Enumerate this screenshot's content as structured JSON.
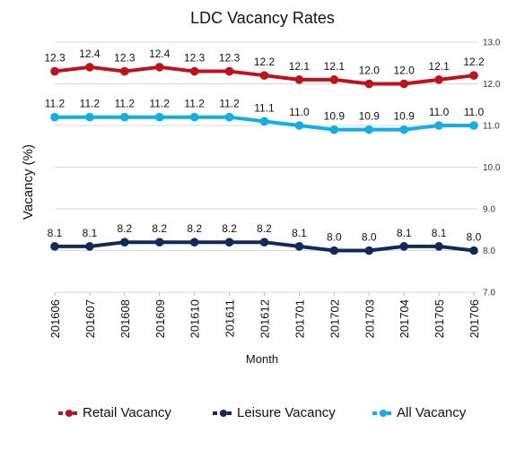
{
  "chart_data": {
    "type": "line",
    "title": "LDC Vacancy Rates",
    "xlabel": "Month",
    "ylabel": "Vacancy (%)",
    "ylim": [
      7.0,
      13.0
    ],
    "y_ticks": [
      "7.0",
      "8.0",
      "9.0",
      "10.0",
      "11.0",
      "12.0",
      "13.0"
    ],
    "y_axis_side": "right",
    "grid": "horizontal",
    "legend_position": "bottom",
    "categories": [
      "201606",
      "201607",
      "201608",
      "201609",
      "201610",
      "201611",
      "201612",
      "201701",
      "201702",
      "201703",
      "201704",
      "201705",
      "201706"
    ],
    "series": [
      {
        "name": "Retail Vacancy",
        "color": "#C0121C",
        "values": [
          12.3,
          12.4,
          12.3,
          12.4,
          12.3,
          12.3,
          12.2,
          12.1,
          12.1,
          12.0,
          12.0,
          12.1,
          12.2
        ]
      },
      {
        "name": "Leisure Vacancy",
        "color": "#0E2B5C",
        "values": [
          8.1,
          8.1,
          8.2,
          8.2,
          8.2,
          8.2,
          8.2,
          8.1,
          8.0,
          8.0,
          8.1,
          8.1,
          8.0
        ]
      },
      {
        "name": "All Vacancy",
        "color": "#12AEE6",
        "values": [
          11.2,
          11.2,
          11.2,
          11.2,
          11.2,
          11.2,
          11.1,
          11.0,
          10.9,
          10.9,
          10.9,
          11.0,
          11.0
        ]
      }
    ]
  }
}
